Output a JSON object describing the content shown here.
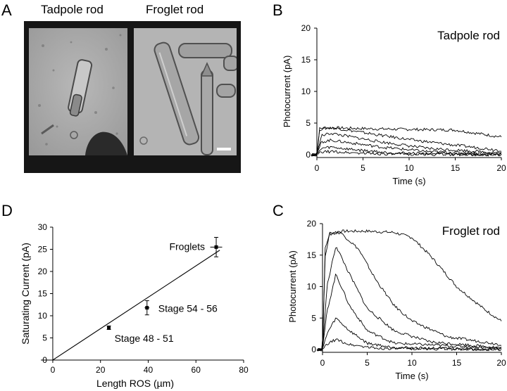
{
  "figure": {
    "panel_labels": {
      "A": "A",
      "B": "B",
      "C": "C",
      "D": "D"
    },
    "panel_a": {
      "left_label": "Tadpole rod",
      "right_label": "Froglet rod"
    }
  },
  "chart_data": [
    {
      "panel": "B",
      "type": "line",
      "title": "Tadpole rod",
      "xlabel": "Time (s)",
      "ylabel": "Photocurrent (pA)",
      "xlim": [
        0,
        20
      ],
      "ylim": [
        0,
        20
      ],
      "xticks": [
        "0",
        "5",
        "10",
        "15",
        "20"
      ],
      "yticks": [
        "0",
        "5",
        "10",
        "15",
        "20"
      ],
      "series": [
        {
          "x": [
            0,
            0.3,
            1,
            3,
            6,
            10,
            15,
            20
          ],
          "y": [
            0,
            4.1,
            4.3,
            4.2,
            4.1,
            4.0,
            3.9,
            2.8
          ]
        },
        {
          "x": [
            0,
            0.3,
            1,
            2,
            5,
            10,
            15,
            20
          ],
          "y": [
            0,
            4.0,
            4.2,
            4.2,
            3.5,
            2.4,
            1.5,
            0.7
          ]
        },
        {
          "x": [
            0,
            0.5,
            1.5,
            3,
            7,
            12,
            20
          ],
          "y": [
            0,
            3.0,
            3.4,
            3.0,
            2.0,
            1.0,
            0.3
          ]
        },
        {
          "x": [
            0,
            0.5,
            1.5,
            3,
            7,
            12,
            20
          ],
          "y": [
            0,
            2.0,
            2.3,
            2.0,
            1.2,
            0.5,
            0.1
          ]
        },
        {
          "x": [
            0,
            0.5,
            1.5,
            4,
            8,
            20
          ],
          "y": [
            0,
            1.0,
            1.2,
            0.8,
            0.3,
            0.0
          ]
        },
        {
          "x": [
            0,
            0.5,
            1.5,
            4,
            8,
            20
          ],
          "y": [
            0,
            0.4,
            0.5,
            0.3,
            0.1,
            0.0
          ]
        }
      ]
    },
    {
      "panel": "C",
      "type": "line",
      "title": "Froglet rod",
      "xlabel": "Time (s)",
      "ylabel": "Photocurrent (pA)",
      "xlim": [
        0,
        20
      ],
      "ylim": [
        0,
        20
      ],
      "xticks": [
        "0",
        "5",
        "10",
        "15",
        "20"
      ],
      "yticks": [
        "0",
        "5",
        "10",
        "15",
        "20"
      ],
      "series": [
        {
          "x": [
            0,
            0.3,
            0.8,
            2,
            5,
            8,
            10,
            12,
            15,
            18,
            20
          ],
          "y": [
            0,
            16,
            18.5,
            18.8,
            18.8,
            18.6,
            17.8,
            15,
            10,
            6.5,
            4.5
          ]
        },
        {
          "x": [
            0,
            0.3,
            0.8,
            2,
            4,
            6,
            8,
            10,
            14,
            20
          ],
          "y": [
            0,
            15,
            18.3,
            18.6,
            16,
            11,
            7,
            4.5,
            2,
            0.8
          ]
        },
        {
          "x": [
            0,
            0.5,
            1.5,
            3,
            5,
            8,
            12,
            20
          ],
          "y": [
            0,
            10,
            16.5,
            12,
            6.5,
            3,
            1.2,
            0.3
          ]
        },
        {
          "x": [
            0,
            0.5,
            1.5,
            3,
            5,
            8,
            20
          ],
          "y": [
            0,
            6,
            12,
            7,
            3,
            1,
            0.2
          ]
        },
        {
          "x": [
            0,
            0.5,
            1.5,
            3,
            5,
            8,
            20
          ],
          "y": [
            0,
            2.5,
            5,
            3,
            1,
            0.3,
            0.0
          ]
        },
        {
          "x": [
            0,
            0.5,
            1.5,
            3,
            6,
            20
          ],
          "y": [
            0,
            0.8,
            1.6,
            0.8,
            0.2,
            0.0
          ]
        }
      ]
    },
    {
      "panel": "D",
      "type": "scatter",
      "xlabel": "Length ROS (µm)",
      "ylabel": "Saturating Current (pA)",
      "xlim": [
        -5,
        80
      ],
      "ylim": [
        0,
        30
      ],
      "xticks": [
        "0",
        "20",
        "40",
        "60",
        "80"
      ],
      "yticks": [
        "0",
        "5",
        "10",
        "15",
        "20",
        "25",
        "30"
      ],
      "points": [
        {
          "label": "Stage 48 - 51",
          "x": 23.5,
          "y": 7.3,
          "xerr": 0.6,
          "yerr": 0.4
        },
        {
          "label": "Stage 54 - 56",
          "x": 39.5,
          "y": 11.8,
          "xerr": 1.0,
          "yerr": 1.6
        },
        {
          "label": "Froglets",
          "x": 68.5,
          "y": 25.5,
          "xerr": 2.5,
          "yerr": 2.2
        }
      ],
      "fit_line": {
        "x": [
          0,
          70
        ],
        "y": [
          0,
          24.8
        ]
      }
    }
  ]
}
